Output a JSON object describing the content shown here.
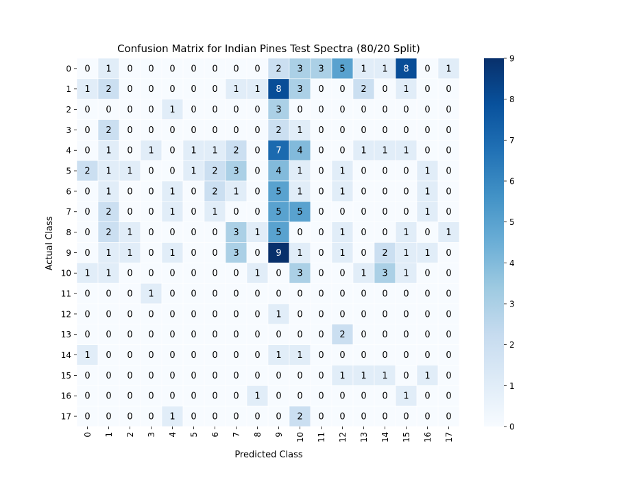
{
  "chart_data": {
    "type": "heatmap",
    "title": "Confusion Matrix for Indian Pines Test Spectra (80/20 Split)",
    "xlabel": "Predicted Class",
    "ylabel": "Actual Class",
    "x_categories": [
      "0",
      "1",
      "2",
      "3",
      "4",
      "5",
      "6",
      "7",
      "8",
      "9",
      "10",
      "11",
      "12",
      "13",
      "14",
      "15",
      "16",
      "17"
    ],
    "y_categories": [
      "0",
      "1",
      "2",
      "3",
      "4",
      "5",
      "6",
      "7",
      "8",
      "9",
      "10",
      "11",
      "12",
      "13",
      "14",
      "15",
      "16",
      "17"
    ],
    "matrix": [
      [
        0,
        1,
        0,
        0,
        0,
        0,
        0,
        0,
        0,
        2,
        3,
        3,
        5,
        1,
        1,
        8,
        0,
        1
      ],
      [
        1,
        2,
        0,
        0,
        0,
        0,
        0,
        1,
        1,
        8,
        3,
        0,
        0,
        2,
        0,
        1,
        0,
        0
      ],
      [
        0,
        0,
        0,
        0,
        1,
        0,
        0,
        0,
        0,
        3,
        0,
        0,
        0,
        0,
        0,
        0,
        0,
        0
      ],
      [
        0,
        2,
        0,
        0,
        0,
        0,
        0,
        0,
        0,
        2,
        1,
        0,
        0,
        0,
        0,
        0,
        0,
        0
      ],
      [
        0,
        1,
        0,
        1,
        0,
        1,
        1,
        2,
        0,
        7,
        4,
        0,
        0,
        1,
        1,
        1,
        0,
        0
      ],
      [
        2,
        1,
        1,
        0,
        0,
        1,
        2,
        3,
        0,
        4,
        1,
        0,
        1,
        0,
        0,
        0,
        1,
        0
      ],
      [
        0,
        1,
        0,
        0,
        1,
        0,
        2,
        1,
        0,
        5,
        1,
        0,
        1,
        0,
        0,
        0,
        1,
        0
      ],
      [
        0,
        2,
        0,
        0,
        1,
        0,
        1,
        0,
        0,
        5,
        5,
        0,
        0,
        0,
        0,
        0,
        1,
        0
      ],
      [
        0,
        2,
        1,
        0,
        0,
        0,
        0,
        3,
        1,
        5,
        0,
        0,
        1,
        0,
        0,
        1,
        0,
        1
      ],
      [
        0,
        1,
        1,
        0,
        1,
        0,
        0,
        3,
        0,
        9,
        1,
        0,
        1,
        0,
        2,
        1,
        1,
        0
      ],
      [
        1,
        1,
        0,
        0,
        0,
        0,
        0,
        0,
        1,
        0,
        3,
        0,
        0,
        1,
        3,
        1,
        0,
        0
      ],
      [
        0,
        0,
        0,
        1,
        0,
        0,
        0,
        0,
        0,
        0,
        0,
        0,
        0,
        0,
        0,
        0,
        0,
        0
      ],
      [
        0,
        0,
        0,
        0,
        0,
        0,
        0,
        0,
        0,
        1,
        0,
        0,
        0,
        0,
        0,
        0,
        0,
        0
      ],
      [
        0,
        0,
        0,
        0,
        0,
        0,
        0,
        0,
        0,
        0,
        0,
        0,
        2,
        0,
        0,
        0,
        0,
        0
      ],
      [
        1,
        0,
        0,
        0,
        0,
        0,
        0,
        0,
        0,
        1,
        1,
        0,
        0,
        0,
        0,
        0,
        0,
        0
      ],
      [
        0,
        0,
        0,
        0,
        0,
        0,
        0,
        0,
        0,
        0,
        0,
        0,
        1,
        1,
        1,
        0,
        1,
        0
      ],
      [
        0,
        0,
        0,
        0,
        0,
        0,
        0,
        0,
        1,
        0,
        0,
        0,
        0,
        0,
        0,
        1,
        0,
        0
      ],
      [
        0,
        0,
        0,
        0,
        1,
        0,
        0,
        0,
        0,
        0,
        2,
        0,
        0,
        0,
        0,
        0,
        0,
        0
      ]
    ],
    "vmin": 0,
    "vmax": 9,
    "colormap": "Blues",
    "colorbar_ticks": [
      "0",
      "1",
      "2",
      "3",
      "4",
      "5",
      "6",
      "7",
      "8",
      "9"
    ],
    "annotate_cells": true,
    "grid": false
  }
}
